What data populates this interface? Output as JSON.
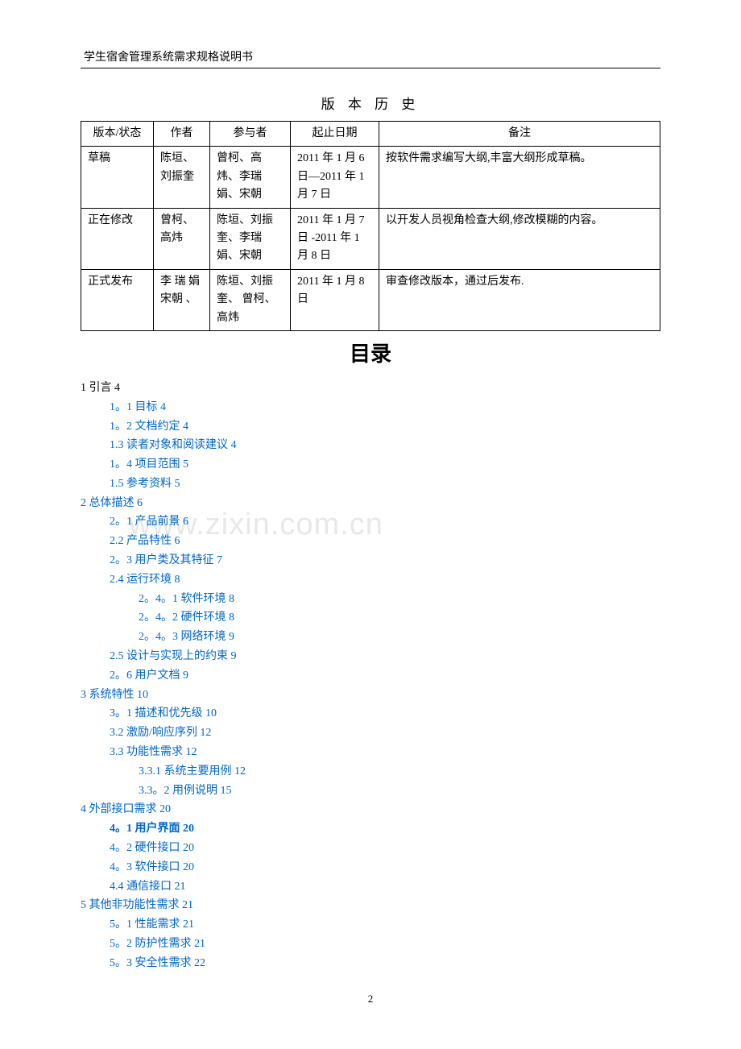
{
  "header": {
    "title": "学生宿舍管理系统需求规格说明书"
  },
  "version_section_title": "版 本 历 史",
  "version_table": {
    "headers": [
      "版本/状态",
      "作者",
      "参与者",
      "起止日期",
      "备注"
    ],
    "rows": [
      {
        "status": "草稿",
        "author": "陈垣、刘振奎",
        "participants": "曾柯、高炜、李瑞娟、宋朝",
        "dates": "2011 年 1 月 6 日—2011 年 1 月 7 日",
        "notes": "按软件需求编写大纲,丰富大纲形成草稿。"
      },
      {
        "status": "正在修改",
        "author": "曾柯、高炜",
        "participants": "陈垣、刘振奎、李瑞娟、宋朝",
        "dates": "2011 年 1 月 7 日 -2011 年 1 月 8 日",
        "notes": "以开发人员视角检查大纲,修改模糊的内容。"
      },
      {
        "status": "正式发布",
        "author": "李 瑞 娟 宋朝 、",
        "participants": "陈垣、刘振奎、 曾柯、高炜",
        "dates": "2011 年 1 月 8 日",
        "notes": "审查修改版本，通过后发布."
      }
    ]
  },
  "toc_title": "目录",
  "toc": [
    {
      "level": 1,
      "text": "1 引言 4",
      "link": false
    },
    {
      "level": 2,
      "text": "1。1 目标 4",
      "link": true
    },
    {
      "level": 2,
      "text": "1。2 文档约定 4",
      "link": true
    },
    {
      "level": 2,
      "text": "1.3 读者对象和阅读建议 4",
      "link": true
    },
    {
      "level": 2,
      "text": "1。4 项目范围 5",
      "link": true
    },
    {
      "level": 2,
      "text": "1.5 参考资料 5",
      "link": true
    },
    {
      "level": 1,
      "text": "2 总体描述 6",
      "link": true
    },
    {
      "level": 2,
      "text": "2。1 产品前景 6",
      "link": true
    },
    {
      "level": 2,
      "text": "2.2 产品特性 6",
      "link": true
    },
    {
      "level": 2,
      "text": "2。3 用户类及其特征 7",
      "link": true
    },
    {
      "level": 2,
      "text": "2.4 运行环境 8",
      "link": true
    },
    {
      "level": 3,
      "text": "2。4。1 软件环境 8",
      "link": true
    },
    {
      "level": 3,
      "text": "2。4。2 硬件环境 8",
      "link": true
    },
    {
      "level": 3,
      "text": "2。4。3 网络环境 9",
      "link": true
    },
    {
      "level": 2,
      "text": "2.5 设计与实现上的约束 9",
      "link": true
    },
    {
      "level": 2,
      "text": "2。6 用户文档 9",
      "link": true
    },
    {
      "level": 1,
      "text": "3 系统特性 10",
      "link": true
    },
    {
      "level": 2,
      "text": "3。1 描述和优先级 10",
      "link": true
    },
    {
      "level": 2,
      "text": "3.2 激励/响应序列 12",
      "link": true
    },
    {
      "level": 2,
      "text": "3.3 功能性需求 12",
      "link": true
    },
    {
      "level": 3,
      "text": "3.3.1  系统主要用例 12",
      "link": true
    },
    {
      "level": 3,
      "text": "3.3。2  用例说明 15",
      "link": true
    },
    {
      "level": 1,
      "text": "4  外部接口需求 20",
      "link": true
    },
    {
      "level": 2,
      "text": "4。1 用户界面 20",
      "link": true,
      "bold": true
    },
    {
      "level": 2,
      "text": "4。2 硬件接口 20",
      "link": true
    },
    {
      "level": 2,
      "text": "4。3 软件接口 20",
      "link": true
    },
    {
      "level": 2,
      "text": "4.4 通信接口 21",
      "link": true
    },
    {
      "level": 1,
      "text": "5 其他非功能性需求 21",
      "link": true
    },
    {
      "level": 2,
      "text": "5。1 性能需求 21",
      "link": true
    },
    {
      "level": 2,
      "text": "5。2 防护性需求 21",
      "link": true
    },
    {
      "level": 2,
      "text": "5。3 安全性需求 22",
      "link": true
    }
  ],
  "watermark": "www.zixin.com.cn",
  "page_number": "2",
  "colors": {
    "link": "#0066cc",
    "text": "#000000",
    "watermark": "#e8e8e8",
    "background": "#ffffff"
  }
}
